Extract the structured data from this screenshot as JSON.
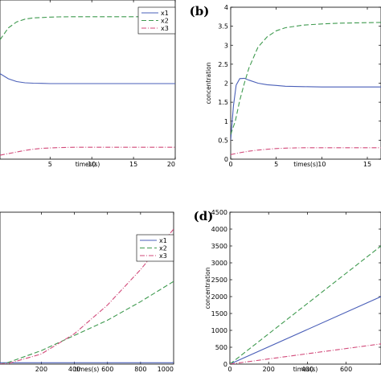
{
  "chart_data": [
    {
      "type": "line",
      "panel_label": "",
      "xlabel": "times(s)",
      "ylabel": "",
      "xlim": [
        -1,
        20
      ],
      "ylim": [
        0,
        4
      ],
      "xticks": [
        5,
        10,
        15,
        20
      ],
      "yticks": [],
      "legend": "top-right",
      "series": [
        {
          "name": "x1",
          "color": "#4a5fb8",
          "dash": "",
          "x": [
            -1,
            0,
            1,
            2,
            3,
            4,
            5,
            6,
            8,
            10,
            15,
            20
          ],
          "y": [
            2.15,
            2.02,
            1.95,
            1.92,
            1.91,
            1.905,
            1.9,
            1.9,
            1.9,
            1.9,
            1.9,
            1.9
          ]
        },
        {
          "name": "x2",
          "color": "#3f9a4f",
          "dash": "6,3",
          "x": [
            -1,
            0,
            1,
            2,
            3,
            4,
            5,
            6,
            8,
            10,
            15,
            20
          ],
          "y": [
            3.0,
            3.3,
            3.45,
            3.52,
            3.55,
            3.56,
            3.57,
            3.575,
            3.58,
            3.58,
            3.58,
            3.58
          ]
        },
        {
          "name": "x3",
          "color": "#d24a7a",
          "dash": "6,2,1,2",
          "x": [
            -1,
            0,
            1,
            2,
            3,
            4,
            5,
            6,
            8,
            10,
            15,
            20
          ],
          "y": [
            0.1,
            0.14,
            0.18,
            0.22,
            0.25,
            0.27,
            0.28,
            0.29,
            0.3,
            0.3,
            0.3,
            0.3
          ]
        }
      ]
    },
    {
      "type": "line",
      "panel_label": "(b)",
      "xlabel": "times(s)",
      "ylabel": "concentration",
      "xlim": [
        0,
        16.5
      ],
      "ylim": [
        0,
        4
      ],
      "xticks": [
        0,
        5,
        10,
        15
      ],
      "yticks": [
        0,
        0.5,
        1,
        1.5,
        2,
        2.5,
        3,
        3.5,
        4
      ],
      "legend": "none",
      "series": [
        {
          "name": "x1",
          "color": "#4a5fb8",
          "dash": "",
          "x": [
            0,
            0.3,
            0.6,
            1,
            1.5,
            2,
            3,
            4,
            5,
            6,
            8,
            10,
            12,
            16.5
          ],
          "y": [
            0.5,
            1.4,
            1.95,
            2.12,
            2.13,
            2.08,
            2.0,
            1.96,
            1.94,
            1.92,
            1.91,
            1.9,
            1.9,
            1.9
          ]
        },
        {
          "name": "x2",
          "color": "#3f9a4f",
          "dash": "6,3",
          "x": [
            0,
            0.5,
            1,
            1.5,
            2,
            3,
            4,
            5,
            6,
            8,
            10,
            12,
            14,
            16.5
          ],
          "y": [
            0.65,
            1.0,
            1.55,
            2.0,
            2.4,
            2.95,
            3.22,
            3.38,
            3.46,
            3.53,
            3.56,
            3.58,
            3.59,
            3.6
          ]
        },
        {
          "name": "x3",
          "color": "#d24a7a",
          "dash": "6,2,1,2",
          "x": [
            0,
            1,
            2,
            3,
            4,
            5,
            6,
            8,
            10,
            16.5
          ],
          "y": [
            0.12,
            0.17,
            0.21,
            0.24,
            0.26,
            0.28,
            0.29,
            0.3,
            0.3,
            0.3
          ]
        }
      ]
    },
    {
      "type": "line",
      "panel_label": "",
      "xlabel": "times(s)",
      "ylabel": "",
      "xlim": [
        -50,
        1000
      ],
      "ylim": [
        0,
        4500
      ],
      "xticks": [
        200,
        400,
        600,
        800,
        1000
      ],
      "yticks": [],
      "legend": "top-right",
      "series": [
        {
          "name": "x1",
          "color": "#4a5fb8",
          "dash": "",
          "x": [
            -50,
            1000
          ],
          "y": [
            40,
            40
          ]
        },
        {
          "name": "x2",
          "color": "#3f9a4f",
          "dash": "6,3",
          "x": [
            -50,
            0,
            200,
            400,
            600,
            800,
            1000
          ],
          "y": [
            0,
            50,
            400,
            850,
            1300,
            1850,
            2450
          ]
        },
        {
          "name": "x3",
          "color": "#d24a7a",
          "dash": "6,2,1,2",
          "x": [
            -50,
            0,
            200,
            400,
            600,
            800,
            1000
          ],
          "y": [
            0,
            20,
            300,
            900,
            1750,
            2800,
            4000
          ]
        }
      ]
    },
    {
      "type": "line",
      "panel_label": "(d)",
      "xlabel": "times(s)",
      "ylabel": "concentration",
      "xlim": [
        0,
        780
      ],
      "ylim": [
        0,
        4500
      ],
      "xticks": [
        0,
        200,
        400,
        600
      ],
      "yticks": [
        0,
        500,
        1000,
        1500,
        2000,
        2500,
        3000,
        3500,
        4000,
        4500
      ],
      "legend": "none",
      "series": [
        {
          "name": "x1",
          "color": "#4a5fb8",
          "dash": "",
          "x": [
            0,
            780
          ],
          "y": [
            0,
            2000
          ]
        },
        {
          "name": "x2",
          "color": "#3f9a4f",
          "dash": "6,3",
          "x": [
            0,
            780
          ],
          "y": [
            0,
            3500
          ]
        },
        {
          "name": "x3",
          "color": "#d24a7a",
          "dash": "6,2,1,2",
          "x": [
            0,
            780
          ],
          "y": [
            0,
            600
          ]
        }
      ]
    }
  ]
}
